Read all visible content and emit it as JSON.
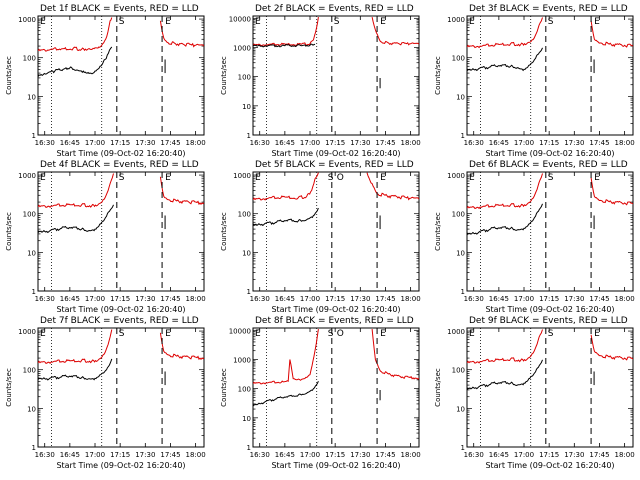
{
  "chart_data": [
    {
      "type": "line",
      "title": "Det 1f BLACK = Events, RED = LLD",
      "xlabel": "Start Time (09-Oct-02 16:20:40)",
      "ylabel": "Counts/sec",
      "ylim": [
        1,
        1200
      ],
      "yscale": "log",
      "xticks": [
        "16:30",
        "16:45",
        "17:00",
        "17:15",
        "17:30",
        "17:45",
        "18:00"
      ],
      "yticks": [
        "1",
        "10",
        "100",
        "1000"
      ],
      "marker_labels": [
        "S",
        "E"
      ],
      "series": [
        {
          "name": "RED = LLD",
          "color": "#dd0000",
          "x": [
            "16:26",
            "16:33",
            "16:40",
            "16:47",
            "16:52",
            "16:56",
            "17:00",
            "17:04",
            "17:07",
            "17:09",
            "17:10"
          ],
          "values": [
            150,
            160,
            170,
            175,
            165,
            170,
            180,
            210,
            350,
            900,
            1100
          ]
        },
        {
          "name": "RED = LLD",
          "color": "#dd0000",
          "x": [
            "17:39",
            "17:41",
            "17:43",
            "17:48",
            "17:53",
            "18:00",
            "18:05"
          ],
          "values": [
            900,
            320,
            250,
            230,
            220,
            210,
            200
          ]
        },
        {
          "name": "BLACK = Events",
          "color": "#000000",
          "x": [
            "16:26",
            "16:31",
            "16:36",
            "16:41",
            "16:45",
            "16:49",
            "16:53",
            "16:57",
            "17:00",
            "17:03",
            "17:06",
            "17:08",
            "17:10"
          ],
          "values": [
            32,
            38,
            45,
            50,
            55,
            48,
            45,
            40,
            45,
            60,
            90,
            130,
            190
          ]
        }
      ]
    },
    {
      "type": "line",
      "title": "Det 2f BLACK = Events, RED = LLD",
      "xlabel": "Start Time (09-Oct-02 16:20:40)",
      "ylabel": "Counts/sec",
      "ylim": [
        1,
        12000
      ],
      "yscale": "log",
      "xticks": [
        "16:30",
        "16:45",
        "17:00",
        "17:15",
        "17:30",
        "17:45",
        "18:00"
      ],
      "yticks": [
        "1",
        "10",
        "100",
        "1000",
        "10000"
      ],
      "marker_labels": [
        "S",
        "E"
      ],
      "series": [
        {
          "name": "RED = LLD",
          "color": "#dd0000",
          "x": [
            "16:26",
            "16:35",
            "16:45",
            "16:55",
            "17:00",
            "17:02",
            "17:04",
            "17:05"
          ],
          "values": [
            1200,
            1250,
            1300,
            1300,
            1350,
            1800,
            5000,
            11000
          ]
        },
        {
          "name": "RED = LLD",
          "color": "#dd0000",
          "x": [
            "17:37",
            "17:39",
            "17:42",
            "17:47",
            "17:53",
            "18:00",
            "18:05"
          ],
          "values": [
            11000,
            4000,
            1600,
            1400,
            1350,
            1350,
            1300
          ]
        },
        {
          "name": "BLACK = Events",
          "color": "#000000",
          "x": [
            "16:26",
            "16:35",
            "16:45",
            "16:55",
            "17:00",
            "17:03"
          ],
          "values": [
            1100,
            1150,
            1150,
            1150,
            1200,
            1300
          ]
        }
      ]
    },
    {
      "type": "line",
      "title": "Det 3f BLACK = Events, RED = LLD",
      "xlabel": "Start Time (09-Oct-02 16:20:40)",
      "ylabel": "Counts/sec",
      "ylim": [
        1,
        1200
      ],
      "yscale": "log",
      "xticks": [
        "16:30",
        "16:45",
        "17:00",
        "17:15",
        "17:30",
        "17:45",
        "18:00"
      ],
      "yticks": [
        "1",
        "10",
        "100",
        "1000"
      ],
      "marker_labels": [
        "S",
        "E"
      ],
      "series": [
        {
          "name": "RED = LLD",
          "color": "#dd0000",
          "x": [
            "16:26",
            "16:35",
            "16:45",
            "16:52",
            "16:58",
            "17:02",
            "17:06",
            "17:09",
            "17:11"
          ],
          "values": [
            190,
            200,
            220,
            230,
            220,
            240,
            320,
            700,
            1100
          ]
        },
        {
          "name": "RED = LLD",
          "color": "#dd0000",
          "x": [
            "17:40",
            "17:42",
            "17:46",
            "17:52",
            "18:00",
            "18:05"
          ],
          "values": [
            900,
            300,
            240,
            220,
            210,
            200
          ]
        },
        {
          "name": "BLACK = Events",
          "color": "#000000",
          "x": [
            "16:26",
            "16:33",
            "16:40",
            "16:47",
            "16:52",
            "16:56",
            "17:00",
            "17:04",
            "17:08",
            "17:11"
          ],
          "values": [
            45,
            52,
            58,
            65,
            60,
            55,
            50,
            70,
            120,
            180
          ]
        }
      ]
    },
    {
      "type": "line",
      "title": "Det 4f BLACK = Events, RED = LLD",
      "xlabel": "Start Time (09-Oct-02 16:20:40)",
      "ylabel": "Counts/sec",
      "ylim": [
        1,
        1200
      ],
      "yscale": "log",
      "xticks": [
        "16:30",
        "16:45",
        "17:00",
        "17:15",
        "17:30",
        "17:45",
        "18:00"
      ],
      "yticks": [
        "1",
        "10",
        "100",
        "1000"
      ],
      "marker_labels": [
        "S",
        "E"
      ],
      "series": [
        {
          "name": "RED = LLD",
          "color": "#dd0000",
          "x": [
            "16:26",
            "16:35",
            "16:45",
            "16:52",
            "16:58",
            "17:02",
            "17:06",
            "17:09",
            "17:11"
          ],
          "values": [
            150,
            160,
            170,
            170,
            160,
            175,
            260,
            600,
            1100
          ]
        },
        {
          "name": "RED = LLD",
          "color": "#dd0000",
          "x": [
            "17:39",
            "17:41",
            "17:44",
            "17:50",
            "17:56",
            "18:05"
          ],
          "values": [
            900,
            280,
            230,
            210,
            200,
            190
          ]
        },
        {
          "name": "BLACK = Events",
          "color": "#000000",
          "x": [
            "16:26",
            "16:33",
            "16:40",
            "16:47",
            "16:52",
            "16:56",
            "17:00",
            "17:04",
            "17:08",
            "17:11"
          ],
          "values": [
            32,
            36,
            42,
            45,
            40,
            36,
            40,
            60,
            110,
            170
          ]
        }
      ]
    },
    {
      "type": "line",
      "title": "Det 5f BLACK = Events, RED = LLD",
      "xlabel": "Start Time (09-Oct-02 16:20:40)",
      "ylabel": "Counts/sec",
      "ylim": [
        1,
        1200
      ],
      "yscale": "log",
      "xticks": [
        "16:30",
        "16:45",
        "17:00",
        "17:15",
        "17:30",
        "17:45",
        "18:00"
      ],
      "yticks": [
        "1",
        "10",
        "100",
        "1000"
      ],
      "marker_labels": [
        "S",
        "O",
        "E"
      ],
      "series": [
        {
          "name": "RED = LLD",
          "color": "#dd0000",
          "x": [
            "16:26",
            "16:35",
            "16:45",
            "16:53",
            "16:58",
            "17:01",
            "17:03",
            "17:05"
          ],
          "values": [
            230,
            250,
            270,
            260,
            280,
            400,
            800,
            1150
          ]
        },
        {
          "name": "RED = LLD",
          "color": "#dd0000",
          "x": [
            "17:34",
            "17:37",
            "17:40",
            "17:46",
            "17:53",
            "18:00",
            "18:05"
          ],
          "values": [
            1150,
            600,
            330,
            290,
            270,
            250,
            240
          ]
        },
        {
          "name": "BLACK = Events",
          "color": "#000000",
          "x": [
            "16:26",
            "16:33",
            "16:40",
            "16:47",
            "16:53",
            "16:58",
            "17:02",
            "17:05"
          ],
          "values": [
            48,
            55,
            60,
            70,
            65,
            70,
            90,
            140
          ]
        }
      ]
    },
    {
      "type": "line",
      "title": "Det 6f BLACK = Events, RED = LLD",
      "xlabel": "Start Time (09-Oct-02 16:20:40)",
      "ylabel": "Counts/sec",
      "ylim": [
        1,
        1200
      ],
      "yscale": "log",
      "xticks": [
        "16:30",
        "16:45",
        "17:00",
        "17:15",
        "17:30",
        "17:45",
        "18:00"
      ],
      "yticks": [
        "1",
        "10",
        "100",
        "1000"
      ],
      "marker_labels": [
        "S",
        "E"
      ],
      "series": [
        {
          "name": "RED = LLD",
          "color": "#dd0000",
          "x": [
            "16:26",
            "16:35",
            "16:45",
            "16:52",
            "16:58",
            "17:02",
            "17:06",
            "17:09",
            "17:11"
          ],
          "values": [
            140,
            150,
            165,
            170,
            160,
            180,
            280,
            650,
            1100
          ]
        },
        {
          "name": "RED = LLD",
          "color": "#dd0000",
          "x": [
            "17:40",
            "17:42",
            "17:46",
            "17:52",
            "18:00",
            "18:05"
          ],
          "values": [
            850,
            280,
            220,
            200,
            190,
            180
          ]
        },
        {
          "name": "BLACK = Events",
          "color": "#000000",
          "x": [
            "16:26",
            "16:33",
            "16:40",
            "16:47",
            "16:52",
            "16:56",
            "17:00",
            "17:04",
            "17:08",
            "17:11"
          ],
          "values": [
            28,
            33,
            40,
            45,
            42,
            38,
            42,
            60,
            110,
            180
          ]
        }
      ]
    },
    {
      "type": "line",
      "title": "Det 7f BLACK = Events, RED = LLD",
      "xlabel": "Start Time (09-Oct-02 16:20:40)",
      "ylabel": "Counts/sec",
      "ylim": [
        1,
        1200
      ],
      "yscale": "log",
      "xticks": [
        "16:30",
        "16:45",
        "17:00",
        "17:15",
        "17:30",
        "17:45",
        "18:00"
      ],
      "yticks": [
        "1",
        "10",
        "100",
        "1000"
      ],
      "marker_labels": [
        "S",
        "E"
      ],
      "series": [
        {
          "name": "RED = LLD",
          "color": "#dd0000",
          "x": [
            "16:26",
            "16:35",
            "16:45",
            "16:52",
            "16:58",
            "17:02",
            "17:06",
            "17:09",
            "17:10"
          ],
          "values": [
            150,
            160,
            170,
            175,
            165,
            180,
            280,
            700,
            1100
          ]
        },
        {
          "name": "RED = LLD",
          "color": "#dd0000",
          "x": [
            "17:39",
            "17:41",
            "17:44",
            "17:50",
            "17:56",
            "18:05"
          ],
          "values": [
            900,
            300,
            240,
            220,
            210,
            200
          ]
        },
        {
          "name": "BLACK = Events",
          "color": "#000000",
          "x": [
            "16:26",
            "16:33",
            "16:40",
            "16:47",
            "16:52",
            "16:56",
            "17:00",
            "17:04",
            "17:08",
            "17:10"
          ],
          "values": [
            55,
            60,
            65,
            70,
            62,
            58,
            60,
            80,
            120,
            190
          ]
        }
      ]
    },
    {
      "type": "line",
      "title": "Det 8f BLACK = Events, RED = LLD",
      "xlabel": "Start Time (09-Oct-02 16:20:40)",
      "ylabel": "Counts/sec",
      "ylim": [
        1,
        12000
      ],
      "yscale": "log",
      "xticks": [
        "16:30",
        "16:45",
        "17:00",
        "17:15",
        "17:30",
        "17:45",
        "18:00"
      ],
      "yticks": [
        "1",
        "10",
        "100",
        "1000",
        "10000"
      ],
      "marker_labels": [
        "S",
        "O",
        "E"
      ],
      "series": [
        {
          "name": "RED = LLD",
          "color": "#dd0000",
          "x": [
            "16:26",
            "16:35",
            "16:44",
            "16:47",
            "16:48",
            "16:50",
            "16:55",
            "17:00",
            "17:03",
            "17:05"
          ],
          "values": [
            150,
            160,
            170,
            180,
            1000,
            220,
            210,
            300,
            2000,
            11000
          ]
        },
        {
          "name": "RED = LLD",
          "color": "#dd0000",
          "x": [
            "17:37",
            "17:39",
            "17:42",
            "17:48",
            "17:55",
            "18:05"
          ],
          "values": [
            11000,
            1000,
            400,
            300,
            250,
            230
          ]
        },
        {
          "name": "BLACK = Events",
          "color": "#000000",
          "x": [
            "16:26",
            "16:33",
            "16:40",
            "16:47",
            "16:53",
            "16:58",
            "17:02",
            "17:05"
          ],
          "values": [
            25,
            35,
            45,
            55,
            60,
            70,
            100,
            180
          ]
        }
      ]
    },
    {
      "type": "line",
      "title": "Det 9f BLACK = Events, RED = LLD",
      "xlabel": "Start Time (09-Oct-02 16:20:40)",
      "ylabel": "Counts/sec",
      "ylim": [
        1,
        1200
      ],
      "yscale": "log",
      "xticks": [
        "16:30",
        "16:45",
        "17:00",
        "17:15",
        "17:30",
        "17:45",
        "18:00"
      ],
      "yticks": [
        "1",
        "10",
        "100",
        "1000"
      ],
      "marker_labels": [
        "S",
        "E"
      ],
      "series": [
        {
          "name": "RED = LLD",
          "color": "#dd0000",
          "x": [
            "16:26",
            "16:35",
            "16:45",
            "16:52",
            "16:58",
            "17:02",
            "17:06",
            "17:09",
            "17:11"
          ],
          "values": [
            150,
            165,
            180,
            190,
            175,
            190,
            300,
            700,
            1100
          ]
        },
        {
          "name": "RED = LLD",
          "color": "#dd0000",
          "x": [
            "17:40",
            "17:42",
            "17:46",
            "17:52",
            "18:00",
            "18:05"
          ],
          "values": [
            800,
            300,
            230,
            210,
            200,
            190
          ]
        },
        {
          "name": "BLACK = Events",
          "color": "#000000",
          "x": [
            "16:26",
            "16:33",
            "16:40",
            "16:47",
            "16:52",
            "16:56",
            "17:00",
            "17:04",
            "17:08",
            "17:11"
          ],
          "values": [
            30,
            36,
            42,
            48,
            45,
            40,
            45,
            65,
            110,
            180
          ]
        }
      ]
    }
  ]
}
